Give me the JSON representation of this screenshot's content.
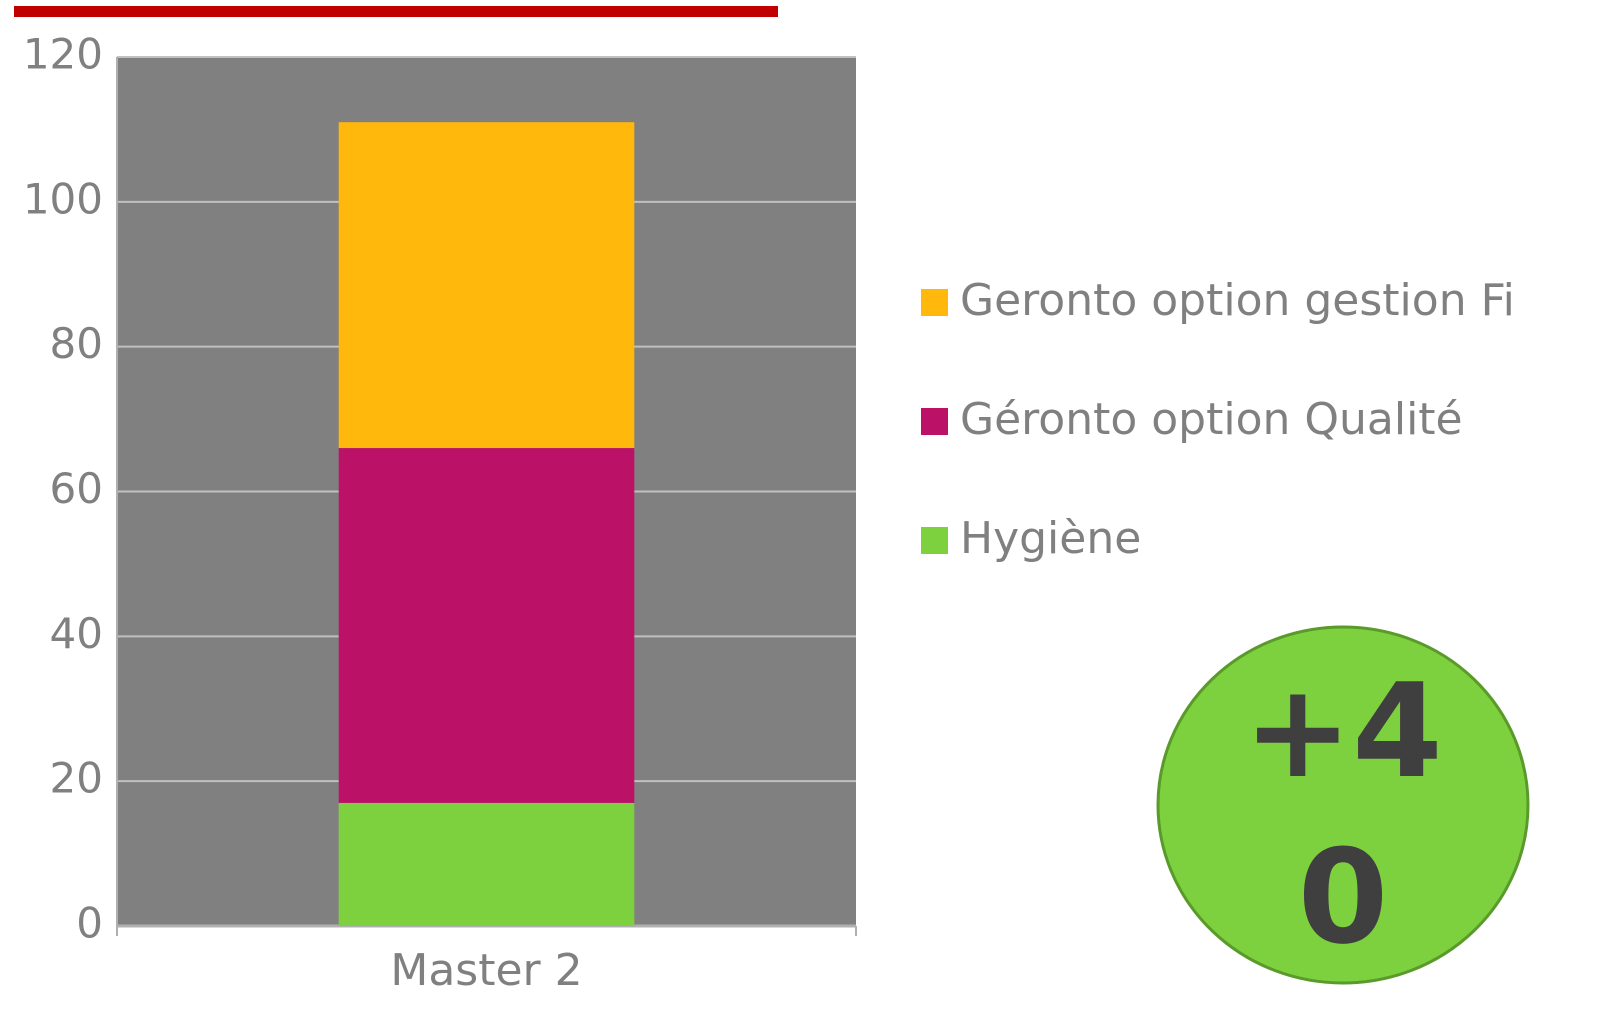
{
  "chart_data": {
    "type": "stacked_bar",
    "categories": [
      "Master 2"
    ],
    "series": [
      {
        "name": "Hygiène",
        "color": "#7ed13e",
        "values": [
          17
        ]
      },
      {
        "name": "Géronto option Qualité",
        "color": "#bb1166",
        "values": [
          49
        ]
      },
      {
        "name": "Geronto option gestion Fi",
        "color": "#ffb80b",
        "values": [
          45
        ]
      }
    ],
    "ylim": [
      0,
      120
    ],
    "yticks": [
      0,
      20,
      40,
      60,
      80,
      100,
      120
    ],
    "grid": true
  },
  "badge": "+40"
}
